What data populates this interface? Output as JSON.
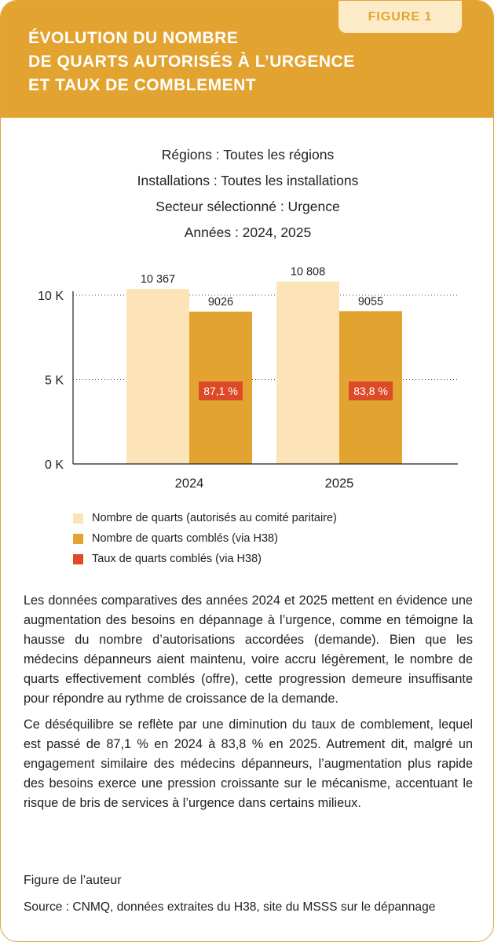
{
  "figure_label": "FIGURE 1",
  "title_lines": [
    "ÉVOLUTION DU NOMBRE",
    "DE QUARTS AUTORISÉS À L’URGENCE",
    "ET TAUX DE COMBLEMENT"
  ],
  "filters": [
    "Régions : Toutes les régions",
    "Installations : Toutes les installations",
    "Secteur sélectionné : Urgence",
    "Années : 2024, 2025"
  ],
  "colors": {
    "header": "#e3a330",
    "authorized": "#fde3b8",
    "filled": "#e3a330",
    "rate": "#dc4a27"
  },
  "chart_data": {
    "type": "bar",
    "categories": [
      "2024",
      "2025"
    ],
    "series": [
      {
        "name": "Nombre de quarts (autorisés au comité paritaire)",
        "values": [
          10367,
          10808
        ],
        "labels": [
          "10 367",
          "10 808"
        ]
      },
      {
        "name": "Nombre de quarts comblés (via H38)",
        "values": [
          9026,
          9055
        ],
        "labels": [
          "9026",
          "9055"
        ]
      },
      {
        "name": "Taux de quarts comblés (via H38)",
        "values": [
          87.1,
          83.8
        ],
        "labels": [
          "87,1 %",
          "83,8 %"
        ]
      }
    ],
    "y_ticks": [
      0,
      5000,
      10000
    ],
    "y_tick_labels": [
      "0 K",
      "5 K",
      "10 K"
    ],
    "ylim": [
      0,
      10000
    ],
    "grid": true,
    "legend_position": "bottom"
  },
  "body_paragraphs": [
    "Les données comparatives des années 2024 et 2025 mettent en évidence une augmentation des besoins en dépannage à l’urgence, comme en témoigne la hausse du nombre d’autorisations accordées (demande). Bien que les médecins dépanneurs aient maintenu, voire accru légèrement, le nombre de quarts effectivement comblés (offre), cette progression demeure insuffisante pour répondre au rythme de croissance de la demande.",
    "Ce déséquilibre se reflète par une diminution du taux de comblement, lequel est passé de 87,1 % en 2024 à 83,8 % en 2025. Autrement dit, malgré un engagement similaire des médecins dépanneurs, l’augmentation plus rapide des besoins exerce une pression croissante sur le mécanisme, accentuant le risque de bris de services à l’urgence dans certains milieux."
  ],
  "credit": "Figure de l’auteur",
  "source": "Source : CNMQ, données extraites du H38, site du MSSS sur le dépannage"
}
